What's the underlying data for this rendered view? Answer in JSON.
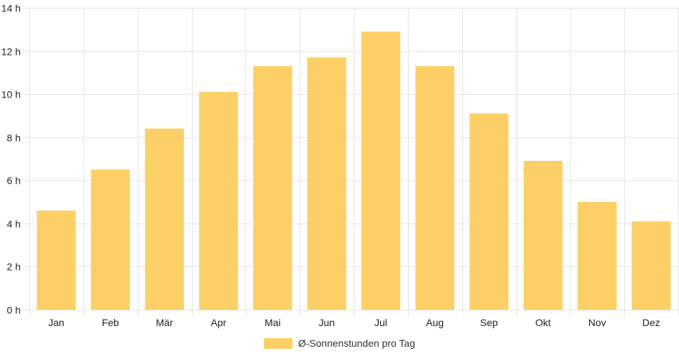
{
  "chart_data": {
    "type": "bar",
    "categories": [
      "Jan",
      "Feb",
      "Mär",
      "Apr",
      "Mai",
      "Jun",
      "Jul",
      "Aug",
      "Sep",
      "Okt",
      "Nov",
      "Dez"
    ],
    "series": [
      {
        "name": "Ø-Sonnenstunden pro Tag",
        "values": [
          4.6,
          6.5,
          8.4,
          10.1,
          11.3,
          11.7,
          12.9,
          11.3,
          9.1,
          6.9,
          5.0,
          4.1
        ],
        "color": "#fdd067"
      }
    ],
    "title": "",
    "xlabel": "",
    "ylabel": "",
    "ylim": [
      0,
      14
    ],
    "yticks": [
      0,
      2,
      4,
      6,
      8,
      10,
      12,
      14
    ],
    "ytick_suffix": " h",
    "grid": true,
    "legend_position": "bottom-center"
  }
}
